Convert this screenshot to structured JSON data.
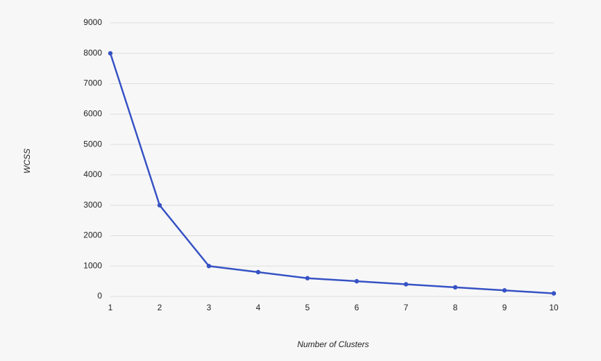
{
  "chart_data": {
    "type": "line",
    "x_label": "Number of Clusters",
    "y_label": "WCSS",
    "x": [
      1,
      2,
      3,
      4,
      5,
      6,
      7,
      8,
      9,
      10
    ],
    "series": [
      {
        "name": "WCSS",
        "color": "#3652c4",
        "values": [
          8000,
          3000,
          1000,
          800,
          600,
          500,
          400,
          300,
          200,
          100
        ]
      }
    ],
    "xlim": [
      1,
      10
    ],
    "xticks": [
      1,
      2,
      3,
      4,
      5,
      6,
      7,
      8,
      9,
      10
    ],
    "ylim": [
      0,
      9000
    ],
    "yticks": [
      0,
      1000,
      2000,
      3000,
      4000,
      5000,
      6000,
      7000,
      8000,
      9000
    ],
    "grid": true
  }
}
